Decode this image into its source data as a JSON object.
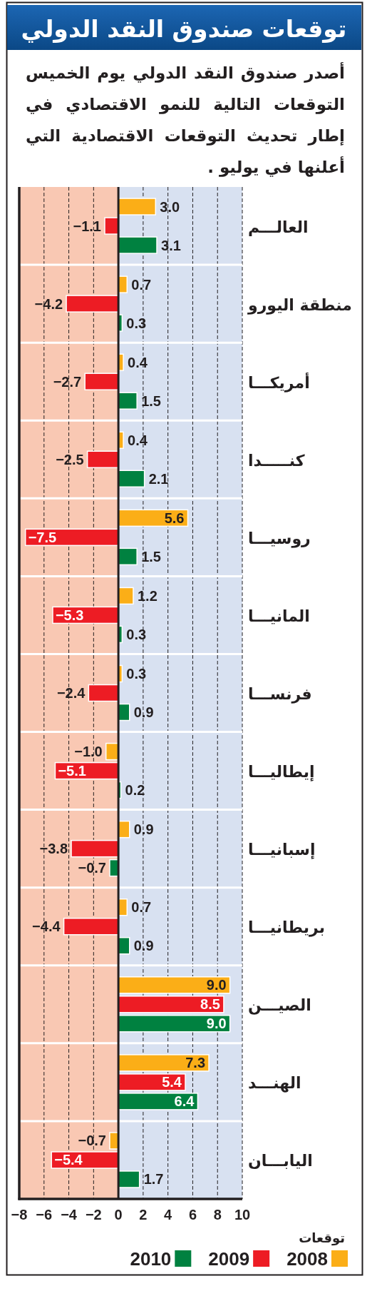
{
  "chart_data": {
    "type": "bar",
    "orientation": "horizontal",
    "title": "توقعات صندوق النقد الدولي",
    "subtitle": "أصدر صندوق النقد الدولي يوم الخميس التوقعات التالية للنمو الاقتصادي في إطار تحديث التوقعات الاقتصادية التي أعلنها في يوليو .",
    "categories": [
      "العالـــم",
      "منطقة اليورو",
      "أمريكـــا",
      "كنـــــدا",
      "روسيـــا",
      "المانيـــا",
      "فرنســـا",
      "إيطاليـــا",
      "إسبانيـــا",
      "بريطانيـــا",
      "الصيـــن",
      "الهنـــد",
      "اليابـــان"
    ],
    "series": [
      {
        "name": "2008",
        "color": "#fbae17",
        "values": [
          3.0,
          0.7,
          0.4,
          0.4,
          5.6,
          1.2,
          0.3,
          -1.0,
          0.9,
          0.7,
          9.0,
          7.3,
          -0.7
        ],
        "value_labels": [
          "3.0",
          "0.7",
          "0.4",
          "0.4",
          "5.6",
          "1.2",
          "0.3",
          "−1.0",
          "0.9",
          "0.7",
          "9.0",
          "7.3",
          "−0.7"
        ]
      },
      {
        "name": "2009",
        "color": "#ed1c24",
        "values": [
          -1.1,
          -4.2,
          -2.7,
          -2.5,
          -7.5,
          -5.3,
          -2.4,
          -5.1,
          -3.8,
          -4.4,
          8.5,
          5.4,
          -5.4
        ],
        "value_labels": [
          "−1.1",
          "−4.2",
          "−2.7",
          "−2.5",
          "−7.5",
          "−5.3",
          "−2.4",
          "−5.1",
          "−3.8",
          "−4.4",
          "8.5",
          "5.4",
          "−5.4"
        ]
      },
      {
        "name": "2010",
        "color": "#008140",
        "values": [
          3.1,
          0.3,
          1.5,
          2.1,
          1.5,
          0.3,
          0.9,
          0.2,
          -0.7,
          0.9,
          9.0,
          6.4,
          1.7
        ],
        "value_labels": [
          "3.1",
          "0.3",
          "1.5",
          "2.1",
          "1.5",
          "0.3",
          "0.9",
          "0.2",
          "−0.7",
          "0.9",
          "9.0",
          "6.4",
          "1.7"
        ]
      }
    ],
    "legend_title": "توقعات",
    "legend": "bottom",
    "xlim": [
      -8,
      10
    ],
    "xticks": [
      {
        "value": -8,
        "label": "−8"
      },
      {
        "value": -6,
        "label": "−6"
      },
      {
        "value": -4,
        "label": "−4"
      },
      {
        "value": -2,
        "label": "−2"
      },
      0,
      2,
      4,
      6,
      8,
      10
    ],
    "grid": "x",
    "bands": [
      {
        "axis": "x",
        "from": -8,
        "to": 0,
        "color": "#f9c8b3"
      },
      {
        "axis": "x",
        "from": 0,
        "to": 10,
        "color": "#d8e1f1"
      }
    ],
    "ref_lines": [
      {
        "axis": "x",
        "value": 0,
        "color": "#231f20"
      }
    ]
  }
}
